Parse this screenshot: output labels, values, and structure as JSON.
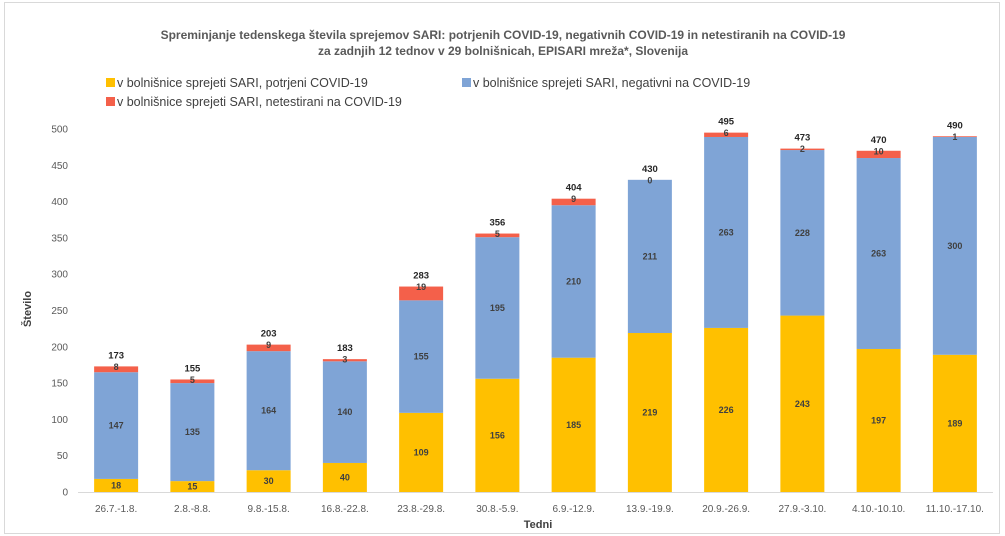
{
  "chart_data": {
    "type": "bar",
    "stacked": true,
    "title": "Spreminjanje tedenskega števila sprejemov SARI: potrjenih COVID-19, negativnih COVID-19 in netestiranih na COVID-19",
    "subtitle": "za zadnjih 12 tednov v 29 bolnišnicah, EPISARI mreža*, Slovenija",
    "xlabel": "Tedni",
    "ylabel": "Število",
    "ylim": [
      0,
      500
    ],
    "yticks": [
      "0",
      "50",
      "100",
      "150",
      "200",
      "250",
      "300",
      "350",
      "400",
      "450",
      "500"
    ],
    "grid": false,
    "legend": "top",
    "categories": [
      "26.7.-1.8.",
      "2.8.-8.8.",
      "9.8.-15.8.",
      "16.8.-22.8.",
      "23.8.-29.8.",
      "30.8.-5.9.",
      "6.9.-12.9.",
      "13.9.-19.9.",
      "20.9.-26.9.",
      "27.9.-3.10.",
      "4.10.-10.10.",
      "11.10.-17.10."
    ],
    "series": [
      {
        "name": "v bolnišnice sprejeti SARI, potrjeni COVID-19",
        "color": "#FFC000",
        "values": [
          18,
          15,
          30,
          40,
          109,
          156,
          185,
          219,
          226,
          243,
          197,
          189
        ]
      },
      {
        "name": "v bolnišnice sprejeti SARI, negativni na COVID-19",
        "color": "#7FA4D6",
        "values": [
          147,
          135,
          164,
          140,
          155,
          195,
          210,
          211,
          263,
          228,
          263,
          300
        ]
      },
      {
        "name": "v bolnišnice sprejeti SARI, netestirani na COVID-19",
        "color": "#F4604A",
        "values": [
          8,
          5,
          9,
          3,
          19,
          5,
          9,
          0,
          6,
          2,
          10,
          1
        ]
      }
    ],
    "totals": [
      173,
      155,
      203,
      183,
      283,
      356,
      404,
      430,
      495,
      473,
      470,
      490
    ]
  }
}
